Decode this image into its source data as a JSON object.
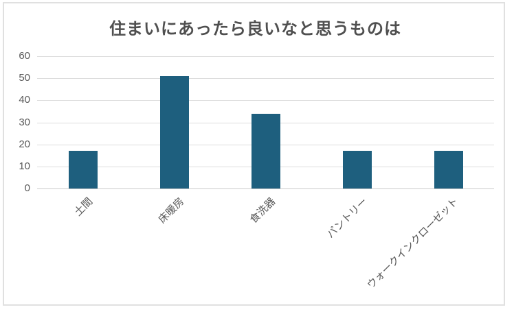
{
  "chart_data": {
    "type": "bar",
    "title": "住まいにあったら良いなと思うものは",
    "categories": [
      "土間",
      "床暖房",
      "食洗器",
      "パントリー",
      "ウォークインクローゼット"
    ],
    "values": [
      17,
      51,
      34,
      17,
      17
    ],
    "xlabel": "",
    "ylabel": "",
    "y_ticks": [
      0,
      10,
      20,
      30,
      40,
      50,
      60
    ],
    "ylim": [
      0,
      60
    ],
    "grid": true,
    "legend": "none",
    "bar_color": "#1E5F7E",
    "gridline_color": "#DCDCDC",
    "axis_line_color": "#C9C9C9",
    "tick_label_color": "#595959",
    "title_color": "#4F4F4F",
    "frame_border_color": "#E0E0E0"
  }
}
